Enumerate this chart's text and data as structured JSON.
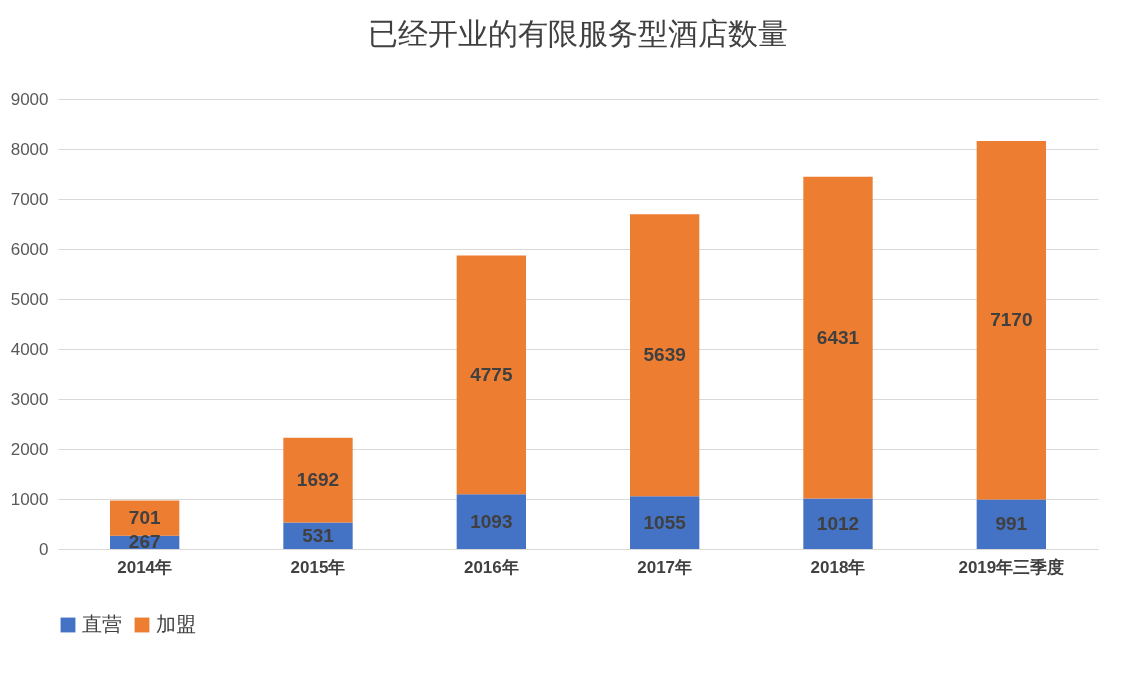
{
  "chart_data": {
    "type": "bar",
    "title": "已经开业的有限服务型酒店数量",
    "categories": [
      "2014年",
      "2015年",
      "2016年",
      "2017年",
      "2018年",
      "2019年三季度"
    ],
    "stacked": true,
    "series": [
      {
        "name": "直营",
        "color": "#4472c4",
        "values": [
          267,
          531,
          1093,
          1055,
          1012,
          991
        ]
      },
      {
        "name": "加盟",
        "color": "#ed7d31",
        "values": [
          701,
          1692,
          4775,
          5639,
          6431,
          7170
        ]
      }
    ],
    "ylim": [
      0,
      9000
    ],
    "yticks": [
      0,
      1000,
      2000,
      3000,
      4000,
      5000,
      6000,
      7000,
      8000,
      9000
    ],
    "grid": "y",
    "legend": "bottom",
    "data_labels": true
  }
}
